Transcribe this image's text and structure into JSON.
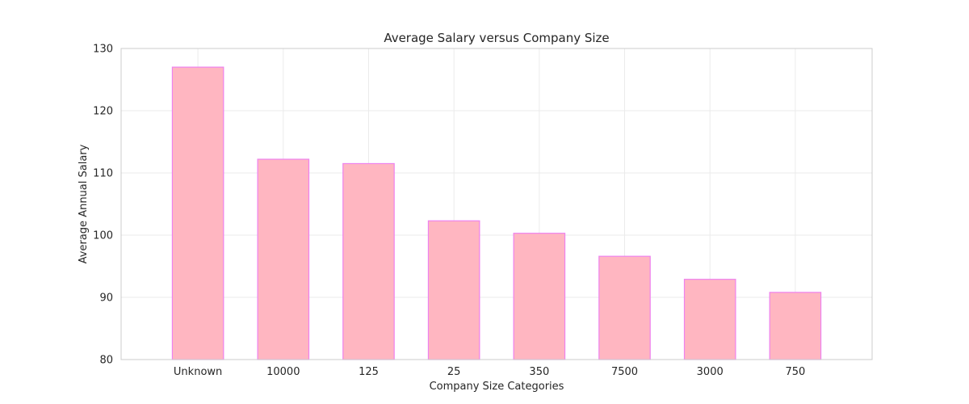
{
  "chart_data": {
    "type": "bar",
    "title": "Average Salary versus Company Size",
    "xlabel": "Company Size Categories",
    "ylabel": "Average Annual Salary",
    "categories": [
      "Unknown",
      "10000",
      "125",
      "25",
      "350",
      "7500",
      "3000",
      "750"
    ],
    "values": [
      127.0,
      112.2,
      111.5,
      102.3,
      100.3,
      96.6,
      92.9,
      90.8
    ],
    "ylim": [
      80,
      130
    ],
    "yticks": [
      80,
      90,
      100,
      110,
      120,
      130
    ],
    "grid": true,
    "legend": "none",
    "colors": {
      "bar_fill": "#ffb6c1",
      "bar_edge": "#ee82ee"
    }
  }
}
